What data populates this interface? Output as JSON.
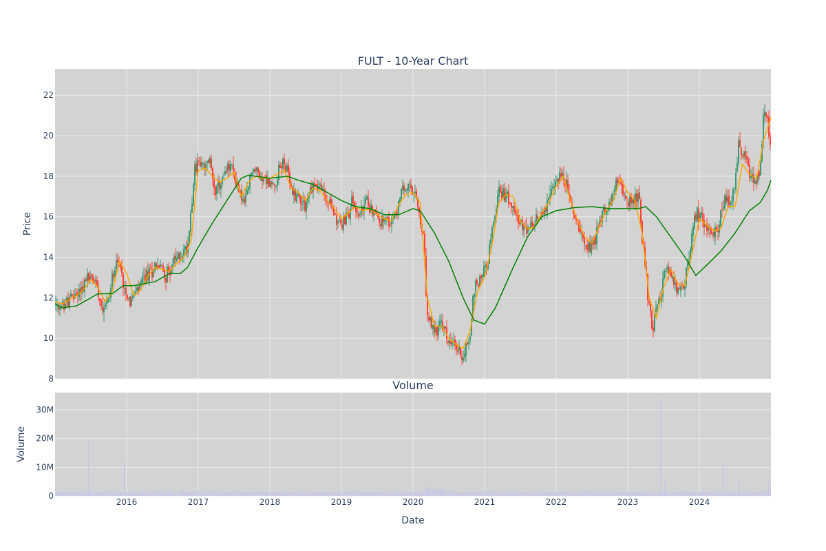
{
  "colors": {
    "plot_bg": "#d3d3d3",
    "grid": "#ebebeb",
    "increasing": "#3d9970",
    "decreasing": "#ff4136",
    "ma_short": "#ffa500",
    "ma_long": "#008000",
    "volume": "#c8c8e6"
  },
  "chart_data": [
    {
      "type": "candlestick",
      "title": "FULT - 10-Year Chart",
      "ylabel": "Price",
      "ylim": [
        8,
        23.3
      ],
      "yticks": [
        8,
        10,
        12,
        14,
        16,
        18,
        20,
        22
      ],
      "xrange": [
        2015.0,
        2025.0
      ],
      "grid": true,
      "price_path": [
        [
          2015.0,
          11.7
        ],
        [
          2015.05,
          11.2
        ],
        [
          2015.1,
          11.6
        ],
        [
          2015.2,
          11.9
        ],
        [
          2015.3,
          12.2
        ],
        [
          2015.4,
          12.6
        ],
        [
          2015.45,
          13.0
        ],
        [
          2015.55,
          12.9
        ],
        [
          2015.6,
          12.5
        ],
        [
          2015.65,
          11.6
        ],
        [
          2015.75,
          11.9
        ],
        [
          2015.8,
          13.0
        ],
        [
          2015.85,
          14.0
        ],
        [
          2015.9,
          13.6
        ],
        [
          2015.95,
          12.8
        ],
        [
          2016.05,
          11.8
        ],
        [
          2016.15,
          12.3
        ],
        [
          2016.25,
          13.0
        ],
        [
          2016.35,
          13.3
        ],
        [
          2016.4,
          13.7
        ],
        [
          2016.5,
          13.4
        ],
        [
          2016.55,
          13.1
        ],
        [
          2016.65,
          13.7
        ],
        [
          2016.75,
          14.1
        ],
        [
          2016.85,
          14.5
        ],
        [
          2016.9,
          16.5
        ],
        [
          2016.95,
          18.3
        ],
        [
          2017.0,
          18.7
        ],
        [
          2017.1,
          18.3
        ],
        [
          2017.15,
          18.9
        ],
        [
          2017.25,
          17.2
        ],
        [
          2017.35,
          17.9
        ],
        [
          2017.45,
          18.6
        ],
        [
          2017.55,
          17.5
        ],
        [
          2017.65,
          16.5
        ],
        [
          2017.75,
          18.4
        ],
        [
          2017.85,
          18.1
        ],
        [
          2017.95,
          17.8
        ],
        [
          2018.05,
          17.5
        ],
        [
          2018.15,
          18.5
        ],
        [
          2018.2,
          18.8
        ],
        [
          2018.3,
          17.3
        ],
        [
          2018.4,
          17.0
        ],
        [
          2018.5,
          16.6
        ],
        [
          2018.6,
          17.6
        ],
        [
          2018.7,
          17.5
        ],
        [
          2018.8,
          16.8
        ],
        [
          2018.9,
          16.2
        ],
        [
          2019.0,
          15.5
        ],
        [
          2019.1,
          16.2
        ],
        [
          2019.15,
          16.8
        ],
        [
          2019.25,
          16.0
        ],
        [
          2019.35,
          16.8
        ],
        [
          2019.45,
          16.2
        ],
        [
          2019.55,
          15.8
        ],
        [
          2019.65,
          15.6
        ],
        [
          2019.75,
          16.0
        ],
        [
          2019.85,
          17.3
        ],
        [
          2019.95,
          17.4
        ],
        [
          2020.05,
          16.8
        ],
        [
          2020.15,
          14.8
        ],
        [
          2020.2,
          11.0
        ],
        [
          2020.3,
          10.3
        ],
        [
          2020.4,
          10.7
        ],
        [
          2020.5,
          9.8
        ],
        [
          2020.6,
          9.6
        ],
        [
          2020.7,
          9.1
        ],
        [
          2020.8,
          10.2
        ],
        [
          2020.85,
          12.5
        ],
        [
          2020.95,
          13.0
        ],
        [
          2021.05,
          14.0
        ],
        [
          2021.15,
          16.2
        ],
        [
          2021.2,
          17.3
        ],
        [
          2021.3,
          17.0
        ],
        [
          2021.4,
          16.8
        ],
        [
          2021.5,
          15.5
        ],
        [
          2021.6,
          15.3
        ],
        [
          2021.7,
          15.6
        ],
        [
          2021.8,
          16.3
        ],
        [
          2021.9,
          16.8
        ],
        [
          2022.05,
          18.2
        ],
        [
          2022.15,
          17.5
        ],
        [
          2022.25,
          16.0
        ],
        [
          2022.35,
          15.3
        ],
        [
          2022.45,
          14.5
        ],
        [
          2022.55,
          15.0
        ],
        [
          2022.65,
          16.3
        ],
        [
          2022.75,
          16.6
        ],
        [
          2022.85,
          17.8
        ],
        [
          2022.95,
          17.0
        ],
        [
          2023.05,
          16.7
        ],
        [
          2023.15,
          17.1
        ],
        [
          2023.2,
          15.0
        ],
        [
          2023.25,
          13.3
        ],
        [
          2023.3,
          11.5
        ],
        [
          2023.35,
          10.5
        ],
        [
          2023.45,
          12.2
        ],
        [
          2023.55,
          13.5
        ],
        [
          2023.65,
          12.6
        ],
        [
          2023.75,
          12.2
        ],
        [
          2023.85,
          13.8
        ],
        [
          2023.95,
          16.2
        ],
        [
          2024.05,
          15.8
        ],
        [
          2024.15,
          15.2
        ],
        [
          2024.25,
          15.4
        ],
        [
          2024.35,
          16.8
        ],
        [
          2024.45,
          16.4
        ],
        [
          2024.55,
          19.5
        ],
        [
          2024.65,
          18.8
        ],
        [
          2024.75,
          17.8
        ],
        [
          2024.85,
          18.0
        ],
        [
          2024.9,
          21.2
        ],
        [
          2024.95,
          20.7
        ],
        [
          2025.0,
          19.6
        ]
      ],
      "ma_short_path": [
        [
          2015.0,
          11.8
        ],
        [
          2015.1,
          11.7
        ],
        [
          2015.2,
          11.9
        ],
        [
          2015.3,
          12.1
        ],
        [
          2015.4,
          12.4
        ],
        [
          2015.5,
          12.9
        ],
        [
          2015.6,
          12.5
        ],
        [
          2015.7,
          11.8
        ],
        [
          2015.8,
          12.3
        ],
        [
          2015.9,
          13.8
        ],
        [
          2016.0,
          13.2
        ],
        [
          2016.1,
          12.1
        ],
        [
          2016.2,
          12.4
        ],
        [
          2016.3,
          13.1
        ],
        [
          2016.4,
          13.5
        ],
        [
          2016.5,
          13.4
        ],
        [
          2016.6,
          13.3
        ],
        [
          2016.7,
          13.7
        ],
        [
          2016.8,
          14.0
        ],
        [
          2016.9,
          14.8
        ],
        [
          2017.0,
          18.3
        ],
        [
          2017.1,
          18.4
        ],
        [
          2017.2,
          18.0
        ],
        [
          2017.3,
          17.7
        ],
        [
          2017.4,
          17.9
        ],
        [
          2017.5,
          18.2
        ],
        [
          2017.6,
          17.0
        ],
        [
          2017.7,
          17.7
        ],
        [
          2017.8,
          18.0
        ],
        [
          2017.9,
          17.9
        ],
        [
          2018.0,
          17.9
        ],
        [
          2018.2,
          18.3
        ],
        [
          2018.3,
          17.4
        ],
        [
          2018.4,
          17.2
        ],
        [
          2018.5,
          16.8
        ],
        [
          2018.6,
          17.4
        ],
        [
          2018.7,
          17.3
        ],
        [
          2018.8,
          16.8
        ],
        [
          2018.9,
          16.4
        ],
        [
          2019.0,
          15.9
        ],
        [
          2019.1,
          16.2
        ],
        [
          2019.2,
          16.5
        ],
        [
          2019.3,
          16.3
        ],
        [
          2019.4,
          16.4
        ],
        [
          2019.5,
          16.1
        ],
        [
          2019.6,
          15.9
        ],
        [
          2019.7,
          15.8
        ],
        [
          2019.8,
          16.6
        ],
        [
          2019.9,
          17.1
        ],
        [
          2020.0,
          17.2
        ],
        [
          2020.1,
          16.7
        ],
        [
          2020.2,
          12.0
        ],
        [
          2020.3,
          10.6
        ],
        [
          2020.4,
          10.6
        ],
        [
          2020.5,
          10.0
        ],
        [
          2020.6,
          9.7
        ],
        [
          2020.7,
          9.5
        ],
        [
          2020.8,
          10.4
        ],
        [
          2020.9,
          12.3
        ],
        [
          2021.0,
          13.0
        ],
        [
          2021.1,
          14.5
        ],
        [
          2021.2,
          16.7
        ],
        [
          2021.3,
          17.1
        ],
        [
          2021.4,
          17.0
        ],
        [
          2021.5,
          15.8
        ],
        [
          2021.6,
          15.4
        ],
        [
          2021.7,
          15.5
        ],
        [
          2021.8,
          16.2
        ],
        [
          2021.9,
          16.7
        ],
        [
          2022.0,
          17.5
        ],
        [
          2022.1,
          18.0
        ],
        [
          2022.2,
          16.8
        ],
        [
          2022.3,
          15.8
        ],
        [
          2022.4,
          15.0
        ],
        [
          2022.5,
          14.7
        ],
        [
          2022.6,
          15.5
        ],
        [
          2022.7,
          16.3
        ],
        [
          2022.8,
          16.8
        ],
        [
          2022.9,
          17.9
        ],
        [
          2023.0,
          17.2
        ],
        [
          2023.1,
          16.8
        ],
        [
          2023.2,
          15.2
        ],
        [
          2023.3,
          12.0
        ],
        [
          2023.4,
          11.0
        ],
        [
          2023.5,
          12.5
        ],
        [
          2023.6,
          13.4
        ],
        [
          2023.7,
          12.7
        ],
        [
          2023.8,
          12.6
        ],
        [
          2023.9,
          14.2
        ],
        [
          2024.0,
          15.9
        ],
        [
          2024.1,
          15.6
        ],
        [
          2024.2,
          15.3
        ],
        [
          2024.3,
          15.4
        ],
        [
          2024.4,
          16.5
        ],
        [
          2024.5,
          16.5
        ],
        [
          2024.6,
          18.6
        ],
        [
          2024.7,
          18.1
        ],
        [
          2024.8,
          17.9
        ],
        [
          2024.9,
          19.8
        ],
        [
          2025.0,
          20.9
        ]
      ],
      "ma_long_path": [
        [
          2015.0,
          11.7
        ],
        [
          2015.1,
          11.5
        ],
        [
          2015.3,
          11.6
        ],
        [
          2015.5,
          12.0
        ],
        [
          2015.6,
          12.2
        ],
        [
          2015.8,
          12.2
        ],
        [
          2015.95,
          12.6
        ],
        [
          2016.1,
          12.6
        ],
        [
          2016.4,
          12.8
        ],
        [
          2016.6,
          13.2
        ],
        [
          2016.75,
          13.2
        ],
        [
          2016.85,
          13.5
        ],
        [
          2017.0,
          14.5
        ],
        [
          2017.2,
          15.7
        ],
        [
          2017.4,
          16.8
        ],
        [
          2017.6,
          17.9
        ],
        [
          2017.7,
          18.05
        ],
        [
          2018.0,
          17.9
        ],
        [
          2018.25,
          18.0
        ],
        [
          2018.4,
          17.8
        ],
        [
          2018.6,
          17.6
        ],
        [
          2018.8,
          17.2
        ],
        [
          2019.0,
          16.8
        ],
        [
          2019.2,
          16.5
        ],
        [
          2019.4,
          16.4
        ],
        [
          2019.6,
          16.1
        ],
        [
          2019.8,
          16.1
        ],
        [
          2020.0,
          16.4
        ],
        [
          2020.1,
          16.3
        ],
        [
          2020.3,
          15.2
        ],
        [
          2020.5,
          13.8
        ],
        [
          2020.7,
          12.0
        ],
        [
          2020.85,
          10.9
        ],
        [
          2021.0,
          10.7
        ],
        [
          2021.15,
          11.5
        ],
        [
          2021.4,
          13.5
        ],
        [
          2021.6,
          15.0
        ],
        [
          2021.8,
          16.0
        ],
        [
          2022.0,
          16.3
        ],
        [
          2022.25,
          16.45
        ],
        [
          2022.5,
          16.5
        ],
        [
          2022.75,
          16.4
        ],
        [
          2023.0,
          16.4
        ],
        [
          2023.15,
          16.4
        ],
        [
          2023.25,
          16.5
        ],
        [
          2023.4,
          16.0
        ],
        [
          2023.6,
          15.0
        ],
        [
          2023.8,
          14.0
        ],
        [
          2023.95,
          13.1
        ],
        [
          2024.1,
          13.6
        ],
        [
          2024.3,
          14.3
        ],
        [
          2024.5,
          15.2
        ],
        [
          2024.7,
          16.3
        ],
        [
          2024.85,
          16.7
        ],
        [
          2024.95,
          17.3
        ],
        [
          2025.0,
          17.8
        ]
      ]
    },
    {
      "type": "bar",
      "title": "Volume",
      "ylabel": "Volume",
      "xlabel": "Date",
      "ylim": [
        0,
        36000000
      ],
      "yticks": [
        0,
        10000000,
        20000000,
        30000000
      ],
      "ytick_labels": [
        "0",
        "10M",
        "20M",
        "30M"
      ],
      "xticks": [
        2016,
        2017,
        2018,
        2019,
        2020,
        2021,
        2022,
        2023,
        2024
      ],
      "xtick_labels": [
        "2016",
        "2017",
        "2018",
        "2019",
        "2020",
        "2021",
        "2022",
        "2023",
        "2024"
      ],
      "volume_spikes": [
        [
          2015.47,
          20000000
        ],
        [
          2015.97,
          11500000
        ],
        [
          2020.2,
          3000000
        ],
        [
          2023.46,
          34000000
        ],
        [
          2023.52,
          5500000
        ],
        [
          2024.33,
          11000000
        ],
        [
          2024.55,
          6000000
        ],
        [
          2024.97,
          5000000
        ]
      ],
      "volume_base": 1500000
    }
  ]
}
